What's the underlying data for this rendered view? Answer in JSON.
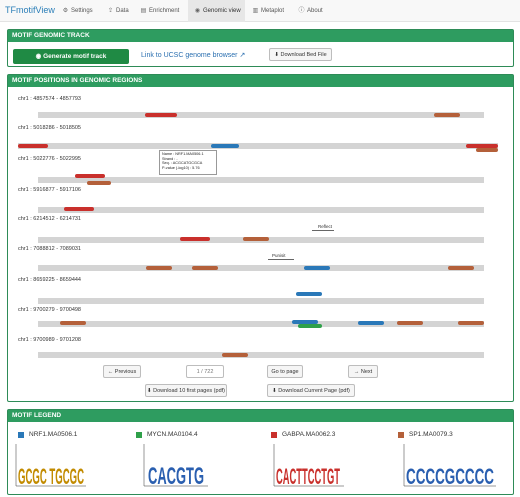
{
  "nav": {
    "brand": "TFmotifView",
    "tabs": [
      {
        "label": "Settings",
        "icon": "gear-icon",
        "glyph": "⚙"
      },
      {
        "label": "Data",
        "icon": "upload-icon",
        "glyph": "⇪"
      },
      {
        "label": "Enrichment",
        "icon": "chart-icon",
        "glyph": "▤"
      },
      {
        "label": "Genomic view",
        "icon": "eye-icon",
        "glyph": "◉"
      },
      {
        "label": "Metaplot",
        "icon": "bar-chart-icon",
        "glyph": "▥"
      },
      {
        "label": "About",
        "icon": "info-icon",
        "glyph": "ⓘ"
      }
    ]
  },
  "genomic_track": {
    "title": "MOTIF GENOMIC TRACK",
    "generate_label": "Generate motif track",
    "ucsc_label": "Link to UCSC genome browser",
    "download_bed_label": "Download Bed File"
  },
  "positions": {
    "title": "MOTIF POSITIONS IN GENOMIC REGIONS",
    "regions": [
      "chr1 : 4857574 - 4857793",
      "chr1 : 5018286 - 5018505",
      "chr1 : 5022776 - 5022995",
      "chr1 : 5916877 - 5917106",
      "chr1 : 6214512 - 6214731",
      "chr1 : 7088812 - 7089031",
      "chr1 : 8659225 - 8659444",
      "chr1 : 9700279 - 9700498",
      "chr1 : 9700989 - 9701208"
    ],
    "tooltip": {
      "name": "Name : NRF1.MA0506.1",
      "strand": "Strand : -",
      "seq": "Seq. : ACGCATGCGCA",
      "pvalue": "P-value (-log10) : 5.76"
    },
    "annot_reflect": "Reflect",
    "annot_punisit": "Punisit",
    "pager": {
      "previous": "← Previous",
      "page_input": "1 / 722",
      "go_to_page": "Go to page",
      "next": "→ Next"
    },
    "download_first_label": "Download 10 first pages (pdf)",
    "download_current_label": "Download Current Page (pdf)"
  },
  "legend": {
    "title": "MOTIF LEGEND",
    "items": [
      {
        "name": "NRF1.MA0506.1",
        "color": "#2a78b8",
        "logo": "GCGC TGCGC"
      },
      {
        "name": "MYCN.MA0104.4",
        "color": "#2fa04a",
        "logo": "CACGTG"
      },
      {
        "name": "GABPA.MA0062.3",
        "color": "#c9302c",
        "logo": "CACTTCCTGT"
      },
      {
        "name": "SP1.MA0079.3",
        "color": "#b4603a",
        "logo": "CCCCGCCCC"
      }
    ]
  },
  "colors": {
    "accent_green": "#2e9c60",
    "button_green": "#1f8a44",
    "link_blue": "#2a6fb0"
  }
}
